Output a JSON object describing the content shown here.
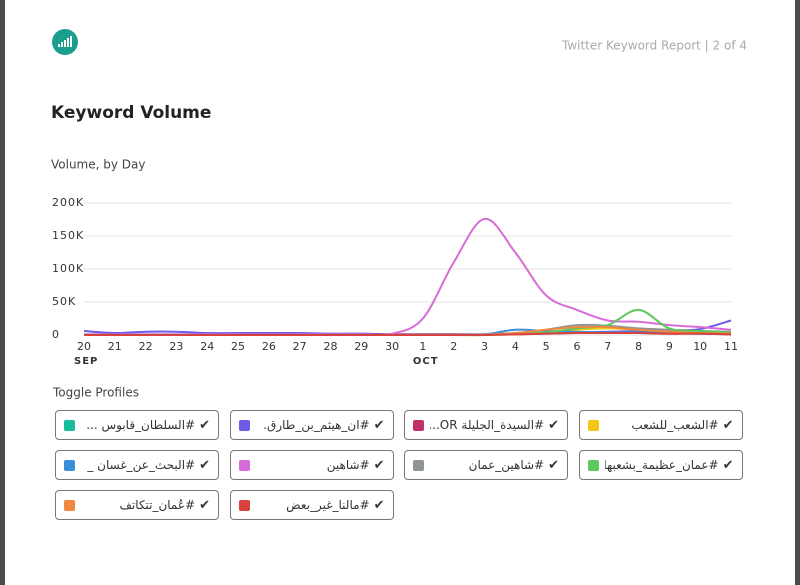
{
  "header": {
    "report": "Twitter Keyword Report | 2 of 4"
  },
  "section_title": "Keyword Volume",
  "chart_data": {
    "type": "line",
    "subtitle": "Volume, by Day",
    "categories": [
      "20",
      "21",
      "22",
      "23",
      "24",
      "25",
      "26",
      "27",
      "28",
      "29",
      "30",
      "1",
      "2",
      "3",
      "4",
      "5",
      "6",
      "7",
      "8",
      "9",
      "10",
      "11"
    ],
    "x_group_labels": [
      "SEP",
      "OCT"
    ],
    "ylim": [
      0,
      200000
    ],
    "yticks": [
      0,
      {
        "value": 50000,
        "label": "50K"
      },
      {
        "value": 100000,
        "label": "100K"
      },
      {
        "value": 150000,
        "label": "150K"
      },
      {
        "value": 200000,
        "label": "200K"
      }
    ],
    "grid": true,
    "legend_title": "Toggle Profiles",
    "series": [
      {
        "name": "#السلطان_قابوس ...",
        "color": "#1abc9c",
        "values": [
          1000,
          1000,
          1000,
          1000,
          1000,
          1000,
          1000,
          1000,
          1000,
          1000,
          1000,
          1000,
          1000,
          1000,
          2000,
          3000,
          4000,
          4000,
          4000,
          3000,
          3000,
          2000
        ]
      },
      {
        "name": "#ان_هيثم_بن_طارق.",
        "color": "#6c5ce7",
        "values": [
          6000,
          3000,
          5000,
          5000,
          3000,
          3000,
          3000,
          3000,
          2000,
          2000,
          1000,
          1000,
          1000,
          1000,
          2000,
          3000,
          4000,
          5000,
          6000,
          7000,
          9000,
          22000
        ]
      },
      {
        "name": "#السيدة_الجليلة OR...",
        "color": "#c2306a",
        "values": [
          500,
          500,
          500,
          500,
          500,
          500,
          500,
          500,
          500,
          500,
          500,
          500,
          500,
          500,
          1000,
          2000,
          3000,
          3000,
          3000,
          2000,
          2000,
          1000
        ]
      },
      {
        "name": "#الشعب_للشعب",
        "color": "#f5c518",
        "values": [
          0,
          0,
          0,
          0,
          0,
          0,
          0,
          0,
          0,
          0,
          0,
          0,
          0,
          0,
          1000,
          3000,
          8000,
          10000,
          8000,
          6000,
          4000,
          3000
        ]
      },
      {
        "name": "#البحث_عن_غسان _",
        "color": "#3b8fd9",
        "values": [
          0,
          0,
          0,
          0,
          0,
          0,
          0,
          0,
          0,
          0,
          0,
          0,
          0,
          1000,
          8000,
          6000,
          5000,
          4000,
          4000,
          3000,
          2000,
          2000
        ]
      },
      {
        "name": "#شاهين",
        "color": "#d96bd9",
        "values": [
          1000,
          1000,
          1000,
          1000,
          1000,
          1000,
          1000,
          1000,
          1000,
          1000,
          2000,
          25000,
          110000,
          176000,
          125000,
          60000,
          38000,
          22000,
          20000,
          15000,
          12000,
          8000
        ]
      },
      {
        "name": "#شاهين_عمان",
        "color": "#8f9596",
        "values": [
          0,
          0,
          0,
          0,
          0,
          0,
          0,
          0,
          0,
          0,
          0,
          0,
          0,
          1000,
          3000,
          8000,
          15000,
          14000,
          10000,
          8000,
          6000,
          5000
        ]
      },
      {
        "name": "#عمان_عظيمة_بشعبها",
        "color": "#5cc95c",
        "values": [
          0,
          0,
          0,
          0,
          0,
          0,
          0,
          0,
          0,
          0,
          0,
          0,
          0,
          0,
          2000,
          4000,
          10000,
          15000,
          38000,
          10000,
          6000,
          4000
        ]
      },
      {
        "name": "#عُمان_تتكاتف",
        "color": "#f0883e",
        "values": [
          0,
          0,
          0,
          0,
          0,
          0,
          0,
          0,
          0,
          0,
          0,
          0,
          0,
          0,
          3000,
          8000,
          12000,
          12000,
          8000,
          5000,
          3000,
          2000
        ]
      },
      {
        "name": "#مالنا_غير_بعض",
        "color": "#d9413d",
        "values": [
          0,
          0,
          0,
          0,
          0,
          0,
          0,
          0,
          0,
          0,
          0,
          0,
          0,
          0,
          1000,
          2000,
          3000,
          3000,
          3000,
          2000,
          2000,
          1000
        ]
      }
    ]
  }
}
